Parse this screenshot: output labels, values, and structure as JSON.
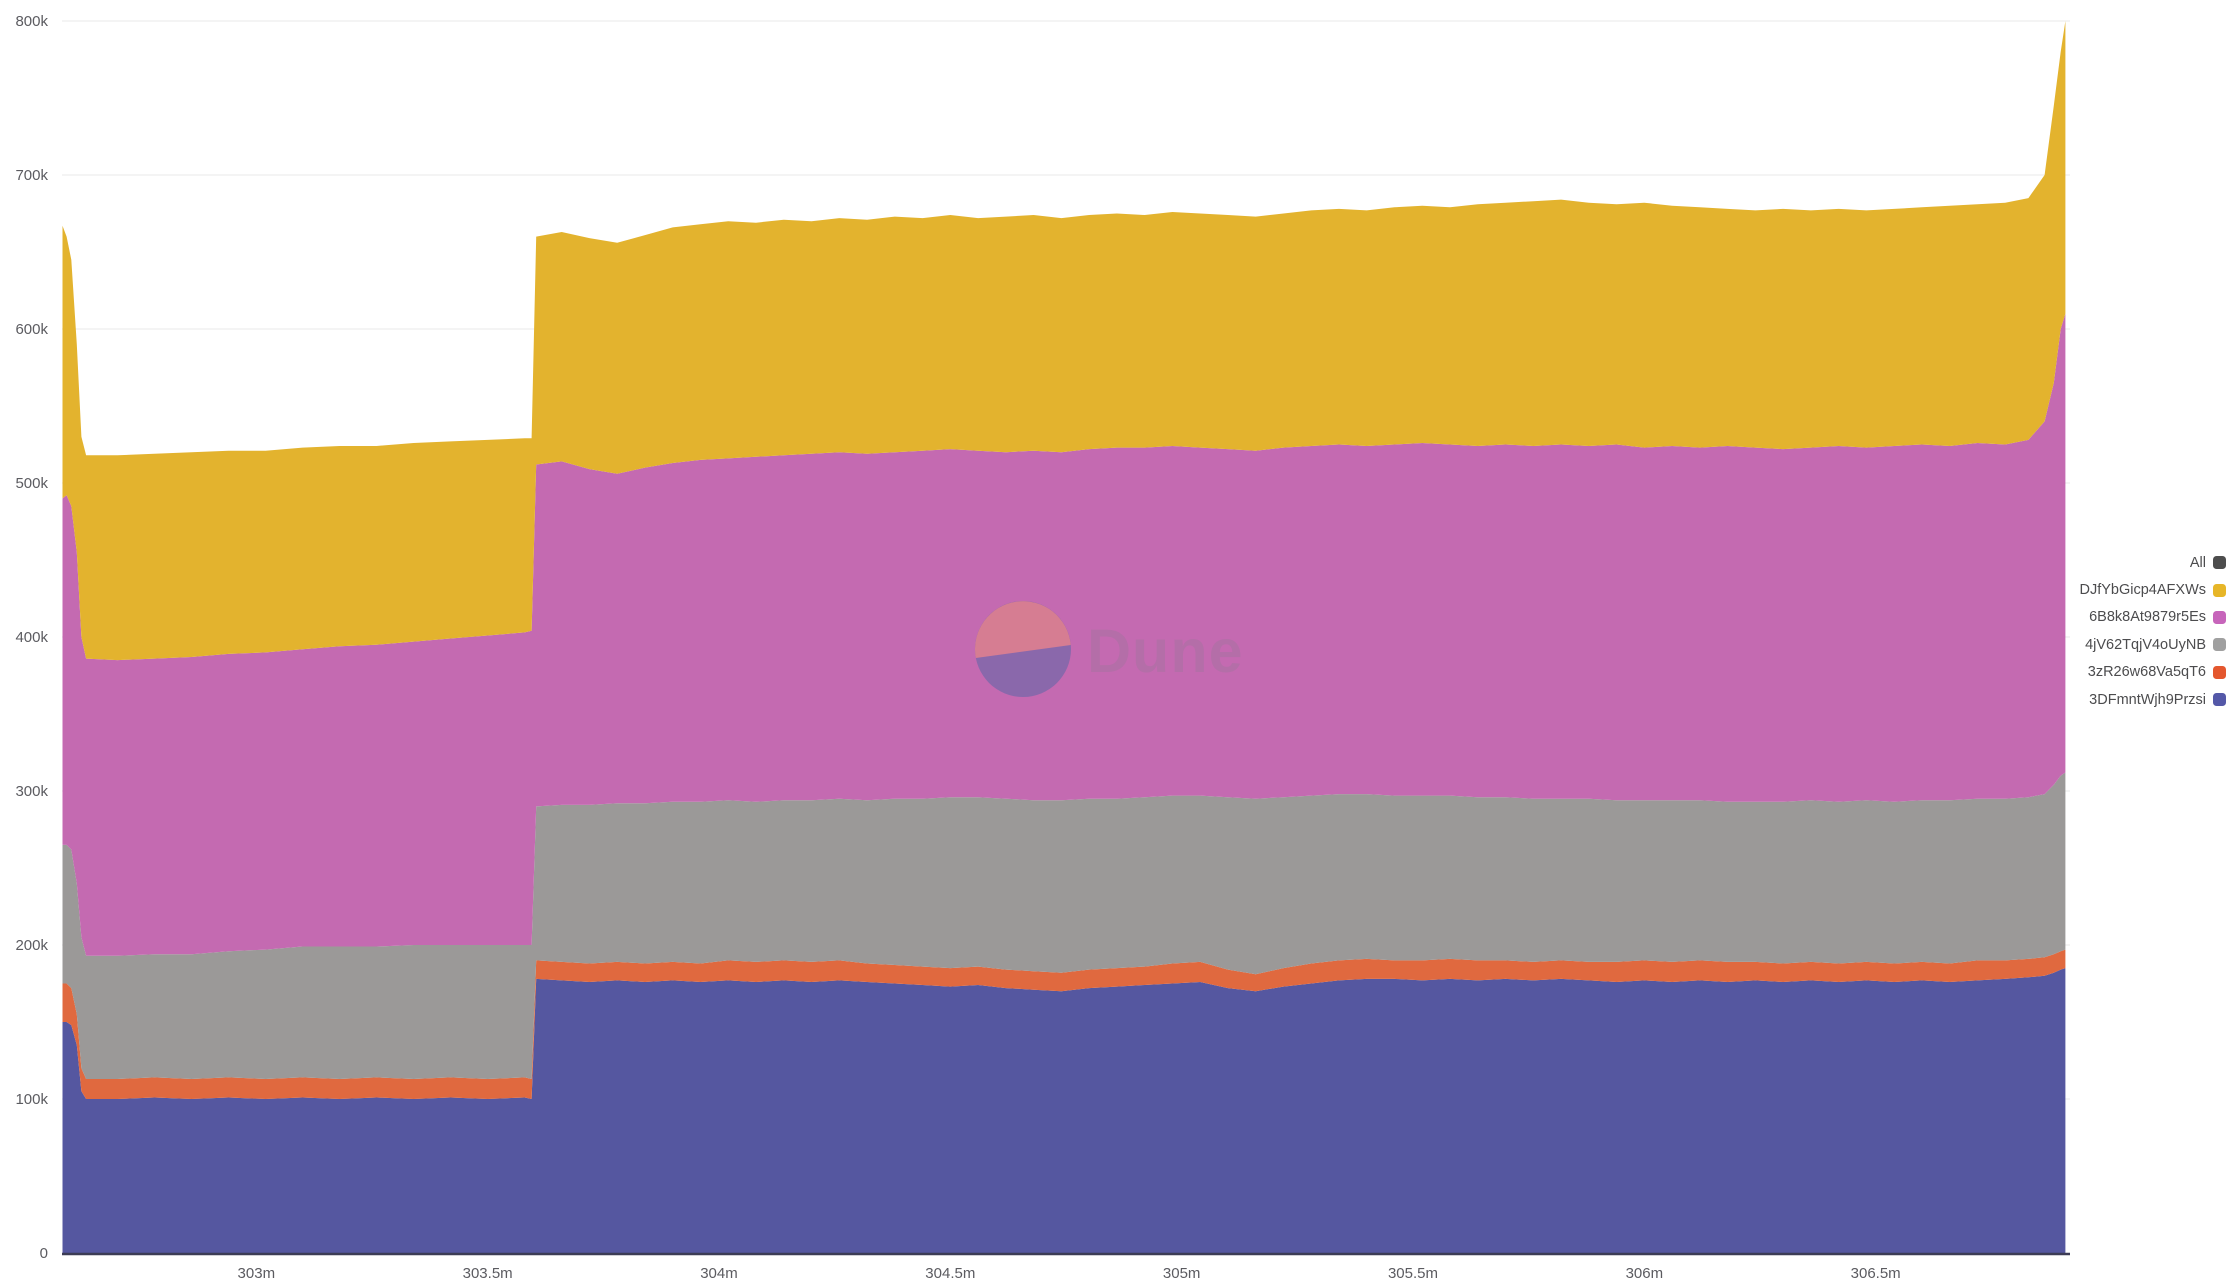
{
  "watermark": {
    "text": "Dune"
  },
  "legend": {
    "items": [
      {
        "label": "All",
        "color": "#4d4d4d"
      },
      {
        "label": "DJfYbGicp4AFXWs",
        "color": "#e7b628"
      },
      {
        "label": "6B8k8At9879r5Es",
        "color": "#c765bb"
      },
      {
        "label": "4jV62TqjV4oUyNB",
        "color": "#a0a0a0"
      },
      {
        "label": "3zR26w68Va5qT6",
        "color": "#e4572e"
      },
      {
        "label": "3DFmntWjh9Przsi",
        "color": "#5458a8"
      }
    ]
  },
  "chart_data": {
    "type": "area",
    "stacked": true,
    "title": "",
    "xlabel": "",
    "ylabel": "",
    "value_unit": "thousands of blocks",
    "x_unit": "block height (millions)",
    "grid": "horizontal",
    "legend_position": "right",
    "x_range": [
      302.58,
      306.92
    ],
    "y_range": [
      0,
      800
    ],
    "x_ticks": [
      {
        "value": 303.0,
        "label": "303m"
      },
      {
        "value": 303.5,
        "label": "303.5m"
      },
      {
        "value": 304.0,
        "label": "304m"
      },
      {
        "value": 304.5,
        "label": "304.5m"
      },
      {
        "value": 305.0,
        "label": "305m"
      },
      {
        "value": 305.5,
        "label": "305.5m"
      },
      {
        "value": 306.0,
        "label": "306m"
      },
      {
        "value": 306.5,
        "label": "306.5m"
      }
    ],
    "y_ticks": [
      {
        "value": 0,
        "label": "0"
      },
      {
        "value": 100,
        "label": "100k"
      },
      {
        "value": 200,
        "label": "200k"
      },
      {
        "value": 300,
        "label": "300k"
      },
      {
        "value": 400,
        "label": "400k"
      },
      {
        "value": 500,
        "label": "500k"
      },
      {
        "value": 600,
        "label": "600k"
      },
      {
        "value": 700,
        "label": "700k"
      },
      {
        "value": 800,
        "label": "800k"
      }
    ],
    "x": [
      302.581,
      302.59,
      302.6,
      302.612,
      302.622,
      302.632,
      302.7,
      302.78,
      302.86,
      302.94,
      303.02,
      303.1,
      303.18,
      303.26,
      303.34,
      303.42,
      303.5,
      303.58,
      303.595,
      303.605,
      303.66,
      303.72,
      303.78,
      303.84,
      303.9,
      303.96,
      304.02,
      304.08,
      304.14,
      304.2,
      304.26,
      304.32,
      304.38,
      304.44,
      304.5,
      304.56,
      304.62,
      304.68,
      304.74,
      304.8,
      304.86,
      304.92,
      304.98,
      305.04,
      305.1,
      305.16,
      305.22,
      305.28,
      305.34,
      305.4,
      305.46,
      305.52,
      305.58,
      305.64,
      305.7,
      305.76,
      305.82,
      305.88,
      305.94,
      306.0,
      306.06,
      306.12,
      306.18,
      306.24,
      306.3,
      306.36,
      306.42,
      306.48,
      306.54,
      306.6,
      306.66,
      306.72,
      306.78,
      306.83,
      306.865,
      306.885,
      306.9,
      306.91
    ],
    "series": [
      {
        "name": "3DFmntWjh9Przsi",
        "color": "#5557a0",
        "values": [
          150,
          150,
          148,
          135,
          105,
          100,
          100,
          101,
          100,
          101,
          100,
          101,
          100,
          101,
          100,
          101,
          100,
          101,
          100,
          178,
          177,
          176,
          177,
          176,
          177,
          176,
          177,
          176,
          177,
          176,
          177,
          176,
          175,
          174,
          173,
          174,
          172,
          171,
          170,
          172,
          173,
          174,
          175,
          176,
          172,
          170,
          173,
          175,
          177,
          178,
          178,
          177,
          178,
          177,
          178,
          177,
          178,
          177,
          176,
          177,
          176,
          177,
          176,
          177,
          176,
          177,
          176,
          177,
          176,
          177,
          176,
          177,
          178,
          179,
          180,
          182,
          184,
          185
        ]
      },
      {
        "name": "3zR26w68Va5qT6",
        "color": "#e0693f",
        "values": [
          25,
          25,
          24,
          20,
          15,
          13,
          13,
          13,
          13,
          13,
          13,
          13,
          13,
          13,
          13,
          13,
          13,
          13,
          13,
          12,
          12,
          12,
          12,
          12,
          12,
          12,
          13,
          13,
          13,
          13,
          13,
          12,
          12,
          12,
          12,
          12,
          12,
          12,
          12,
          12,
          12,
          12,
          13,
          13,
          12,
          11,
          12,
          13,
          13,
          13,
          12,
          13,
          13,
          13,
          12,
          12,
          12,
          12,
          13,
          13,
          13,
          13,
          13,
          12,
          12,
          12,
          12,
          12,
          12,
          12,
          12,
          13,
          12,
          12,
          12,
          12,
          12,
          12
        ]
      },
      {
        "name": "4jV62TqjV4oUyNB",
        "color": "#9b9998",
        "values": [
          90,
          90,
          90,
          85,
          85,
          80,
          80,
          80,
          81,
          82,
          84,
          85,
          86,
          85,
          87,
          86,
          87,
          86,
          87,
          100,
          102,
          103,
          103,
          104,
          104,
          105,
          104,
          104,
          104,
          105,
          105,
          106,
          108,
          109,
          111,
          110,
          111,
          111,
          112,
          111,
          110,
          110,
          109,
          108,
          112,
          114,
          111,
          109,
          108,
          107,
          107,
          107,
          106,
          106,
          106,
          106,
          105,
          106,
          105,
          104,
          105,
          104,
          104,
          104,
          105,
          105,
          105,
          105,
          105,
          105,
          106,
          105,
          105,
          105,
          106,
          110,
          114,
          115
        ]
      },
      {
        "name": "6B8k8At9879r5Es",
        "color": "#c46ab1",
        "values": [
          225,
          227,
          223,
          215,
          195,
          193,
          192,
          192,
          193,
          193,
          193,
          193,
          195,
          196,
          197,
          199,
          201,
          203,
          204,
          222,
          223,
          218,
          214,
          218,
          220,
          222,
          222,
          224,
          224,
          225,
          225,
          225,
          225,
          226,
          226,
          225,
          225,
          227,
          226,
          227,
          228,
          227,
          227,
          226,
          226,
          226,
          227,
          227,
          227,
          226,
          228,
          229,
          228,
          228,
          229,
          229,
          230,
          229,
          231,
          229,
          230,
          229,
          231,
          230,
          229,
          229,
          231,
          229,
          231,
          231,
          230,
          231,
          230,
          232,
          242,
          261,
          290,
          298
        ]
      },
      {
        "name": "DJfYbGicp4AFXWs",
        "color": "#e3b32e",
        "values": [
          177,
          168,
          160,
          135,
          130,
          132,
          133,
          133,
          133,
          132,
          131,
          131,
          130,
          129,
          129,
          128,
          127,
          126,
          125,
          148,
          149,
          150,
          150,
          151,
          153,
          153,
          154,
          152,
          153,
          151,
          152,
          152,
          153,
          151,
          152,
          151,
          153,
          153,
          152,
          152,
          152,
          151,
          152,
          152,
          152,
          152,
          152,
          153,
          153,
          153,
          154,
          154,
          154,
          157,
          157,
          159,
          159,
          158,
          156,
          159,
          156,
          156,
          154,
          154,
          156,
          154,
          154,
          154,
          154,
          154,
          156,
          155,
          157,
          157,
          160,
          180,
          180,
          190
        ]
      }
    ]
  }
}
